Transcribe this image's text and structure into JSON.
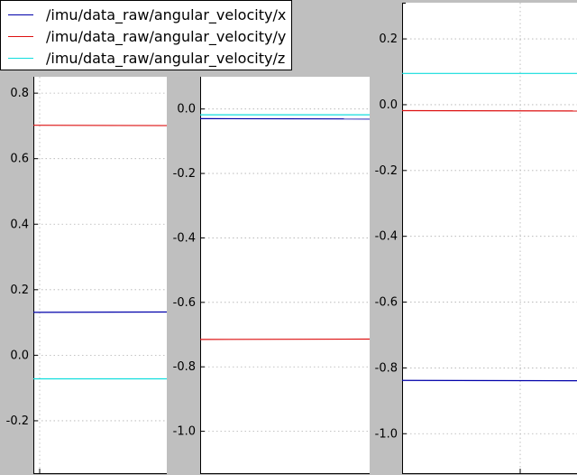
{
  "series": [
    {
      "name": "/imu/data_raw/angular_velocity/x",
      "color": "#0000aa"
    },
    {
      "name": "/imu/data_raw/angular_velocity/y",
      "color": "#dd1111"
    },
    {
      "name": "/imu/data_raw/angular_velocity/z",
      "color": "#11dddd"
    }
  ],
  "chart_data": [
    {
      "type": "line",
      "ylim": [
        -0.36,
        0.85
      ],
      "yticks": [
        "-0.2",
        "0.0",
        "0.2",
        "0.4",
        "0.6",
        "0.8"
      ],
      "ytick_values": [
        -0.2,
        0.0,
        0.2,
        0.4,
        0.6,
        0.8
      ],
      "grid": true,
      "series": [
        {
          "name": "/imu/data_raw/angular_velocity/x",
          "values": [
            0.131,
            0.132
          ]
        },
        {
          "name": "/imu/data_raw/angular_velocity/y",
          "values": [
            0.702,
            0.701
          ]
        },
        {
          "name": "/imu/data_raw/angular_velocity/z",
          "values": [
            -0.072,
            -0.072
          ]
        }
      ]
    },
    {
      "type": "line",
      "ylim": [
        -1.13,
        0.1
      ],
      "yticks": [
        "-1.0",
        "-0.8",
        "-0.6",
        "-0.4",
        "-0.2",
        "0.0"
      ],
      "ytick_values": [
        -1.0,
        -0.8,
        -0.6,
        -0.4,
        -0.2,
        0.0
      ],
      "grid": true,
      "series": [
        {
          "name": "/imu/data_raw/angular_velocity/x",
          "values": [
            -0.03,
            -0.031
          ]
        },
        {
          "name": "/imu/data_raw/angular_velocity/y",
          "values": [
            -0.715,
            -0.714
          ]
        },
        {
          "name": "/imu/data_raw/angular_velocity/z",
          "values": [
            -0.018,
            -0.018
          ]
        }
      ]
    },
    {
      "type": "line",
      "ylim": [
        -1.12,
        0.31
      ],
      "yticks": [
        "-1.0",
        "-0.8",
        "-0.6",
        "-0.4",
        "-0.2",
        "0.0",
        "0.2"
      ],
      "ytick_values": [
        -1.0,
        -0.8,
        -0.6,
        -0.4,
        -0.2,
        0.0,
        0.2
      ],
      "grid": true,
      "series": [
        {
          "name": "/imu/data_raw/angular_velocity/x",
          "values": [
            -0.838,
            -0.839
          ]
        },
        {
          "name": "/imu/data_raw/angular_velocity/y",
          "values": [
            -0.018,
            -0.019
          ]
        },
        {
          "name": "/imu/data_raw/angular_velocity/z",
          "values": [
            0.095,
            0.095
          ]
        }
      ]
    }
  ]
}
